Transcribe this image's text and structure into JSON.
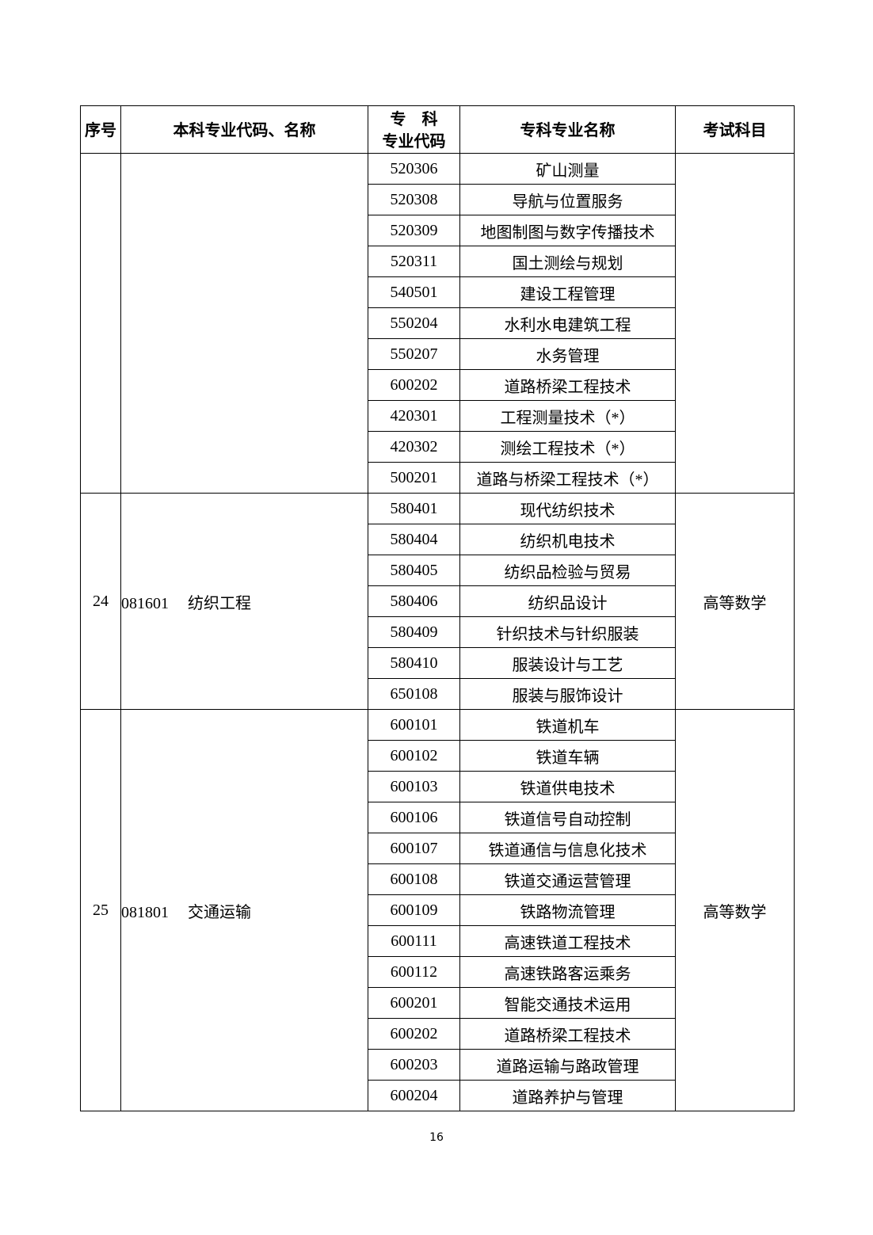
{
  "headers": {
    "seq": "序号",
    "undergrad": "本科专业代码、名称",
    "code_line1": "专　科",
    "code_line2": "专业代码",
    "name": "专科专业名称",
    "exam": "考试科目"
  },
  "groups": [
    {
      "seq": "",
      "major_code": "",
      "major_name": "",
      "exam": "",
      "rows": [
        {
          "code": "520306",
          "name": "矿山测量"
        },
        {
          "code": "520308",
          "name": "导航与位置服务"
        },
        {
          "code": "520309",
          "name": "地图制图与数字传播技术"
        },
        {
          "code": "520311",
          "name": "国土测绘与规划"
        },
        {
          "code": "540501",
          "name": "建设工程管理"
        },
        {
          "code": "550204",
          "name": "水利水电建筑工程"
        },
        {
          "code": "550207",
          "name": "水务管理"
        },
        {
          "code": "600202",
          "name": "道路桥梁工程技术"
        },
        {
          "code": "420301",
          "name": "工程测量技术（*）"
        },
        {
          "code": "420302",
          "name": "测绘工程技术（*）"
        },
        {
          "code": "500201",
          "name": "道路与桥梁工程技术（*）"
        }
      ]
    },
    {
      "seq": "24",
      "major_code": "081601",
      "major_name": "纺织工程",
      "exam": "高等数学",
      "rows": [
        {
          "code": "580401",
          "name": "现代纺织技术"
        },
        {
          "code": "580404",
          "name": "纺织机电技术"
        },
        {
          "code": "580405",
          "name": "纺织品检验与贸易"
        },
        {
          "code": "580406",
          "name": "纺织品设计"
        },
        {
          "code": "580409",
          "name": "针织技术与针织服装"
        },
        {
          "code": "580410",
          "name": "服装设计与工艺"
        },
        {
          "code": "650108",
          "name": "服装与服饰设计"
        }
      ]
    },
    {
      "seq": "25",
      "major_code": "081801",
      "major_name": "交通运输",
      "exam": "高等数学",
      "rows": [
        {
          "code": "600101",
          "name": "铁道机车"
        },
        {
          "code": "600102",
          "name": "铁道车辆"
        },
        {
          "code": "600103",
          "name": "铁道供电技术"
        },
        {
          "code": "600106",
          "name": "铁道信号自动控制"
        },
        {
          "code": "600107",
          "name": "铁道通信与信息化技术"
        },
        {
          "code": "600108",
          "name": "铁道交通运营管理"
        },
        {
          "code": "600109",
          "name": "铁路物流管理"
        },
        {
          "code": "600111",
          "name": "高速铁道工程技术"
        },
        {
          "code": "600112",
          "name": "高速铁路客运乘务"
        },
        {
          "code": "600201",
          "name": "智能交通技术运用"
        },
        {
          "code": "600202",
          "name": "道路桥梁工程技术"
        },
        {
          "code": "600203",
          "name": "道路运输与路政管理"
        },
        {
          "code": "600204",
          "name": "道路养护与管理"
        }
      ]
    }
  ],
  "page_number": "16"
}
